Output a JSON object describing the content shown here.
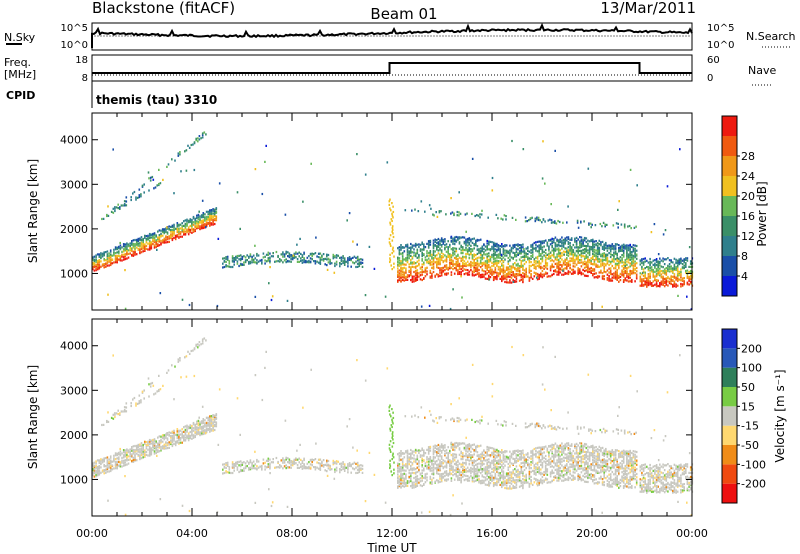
{
  "header": {
    "station": "Blackstone (fitACF)",
    "beam": "Beam 01",
    "date": "13/Mar/2011"
  },
  "panels": {
    "noise_left_label": "N.Sky",
    "noise_right_label": "N.Search",
    "noise_ticks": [
      "10^5",
      "10^0"
    ],
    "freq_left_label_1": "Freq.",
    "freq_left_label_2": "[MHz]",
    "freq_ticks_left": [
      "18",
      "8"
    ],
    "freq_ticks_right": [
      "60",
      "0"
    ],
    "nave_label": "Nave",
    "cpid_label": "CPID",
    "cpid_value": "themis (tau) 3310"
  },
  "colors": {
    "power_scale": [
      "#0a1ad8",
      "#1a4fa8",
      "#2f7f8c",
      "#3a8f68",
      "#68b858",
      "#f0c020",
      "#f09818",
      "#f05a10",
      "#ee1a10"
    ],
    "velocity_scale": [
      "#1a2fd0",
      "#2858b8",
      "#2e7f5a",
      "#78cc44",
      "#c8c8c0",
      "#ffd870",
      "#f08c18",
      "#f04a10",
      "#ee1010"
    ],
    "noise_line": "#000000"
  },
  "chart_data": [
    {
      "type": "heatmap",
      "panel": "power",
      "xlabel": "",
      "ylabel": "Slant Range [km]",
      "x_tick_labels": [
        "00:00",
        "04:00",
        "08:00",
        "12:00",
        "16:00",
        "20:00",
        "00:00"
      ],
      "x_range_hours": [
        0,
        24
      ],
      "y_range_km": [
        180,
        4600
      ],
      "y_ticks": [
        1000,
        2000,
        3000,
        4000
      ],
      "colorbar": {
        "label": "Power [dB]",
        "ticks": [
          4,
          8,
          12,
          16,
          20,
          24,
          28
        ],
        "range": [
          0,
          32
        ]
      }
    },
    {
      "type": "heatmap",
      "panel": "velocity",
      "xlabel": "Time UT",
      "ylabel": "Slant Range [km]",
      "x_tick_labels": [
        "00:00",
        "04:00",
        "08:00",
        "12:00",
        "16:00",
        "20:00",
        "00:00"
      ],
      "x_range_hours": [
        0,
        24
      ],
      "y_range_km": [
        180,
        4600
      ],
      "y_ticks": [
        1000,
        2000,
        3000,
        4000
      ],
      "colorbar": {
        "label": "Velocity [m s⁻¹]",
        "ticks": [
          "200",
          "100",
          "50",
          "15",
          "-15",
          "-50",
          "-100",
          "-200"
        ]
      }
    }
  ]
}
